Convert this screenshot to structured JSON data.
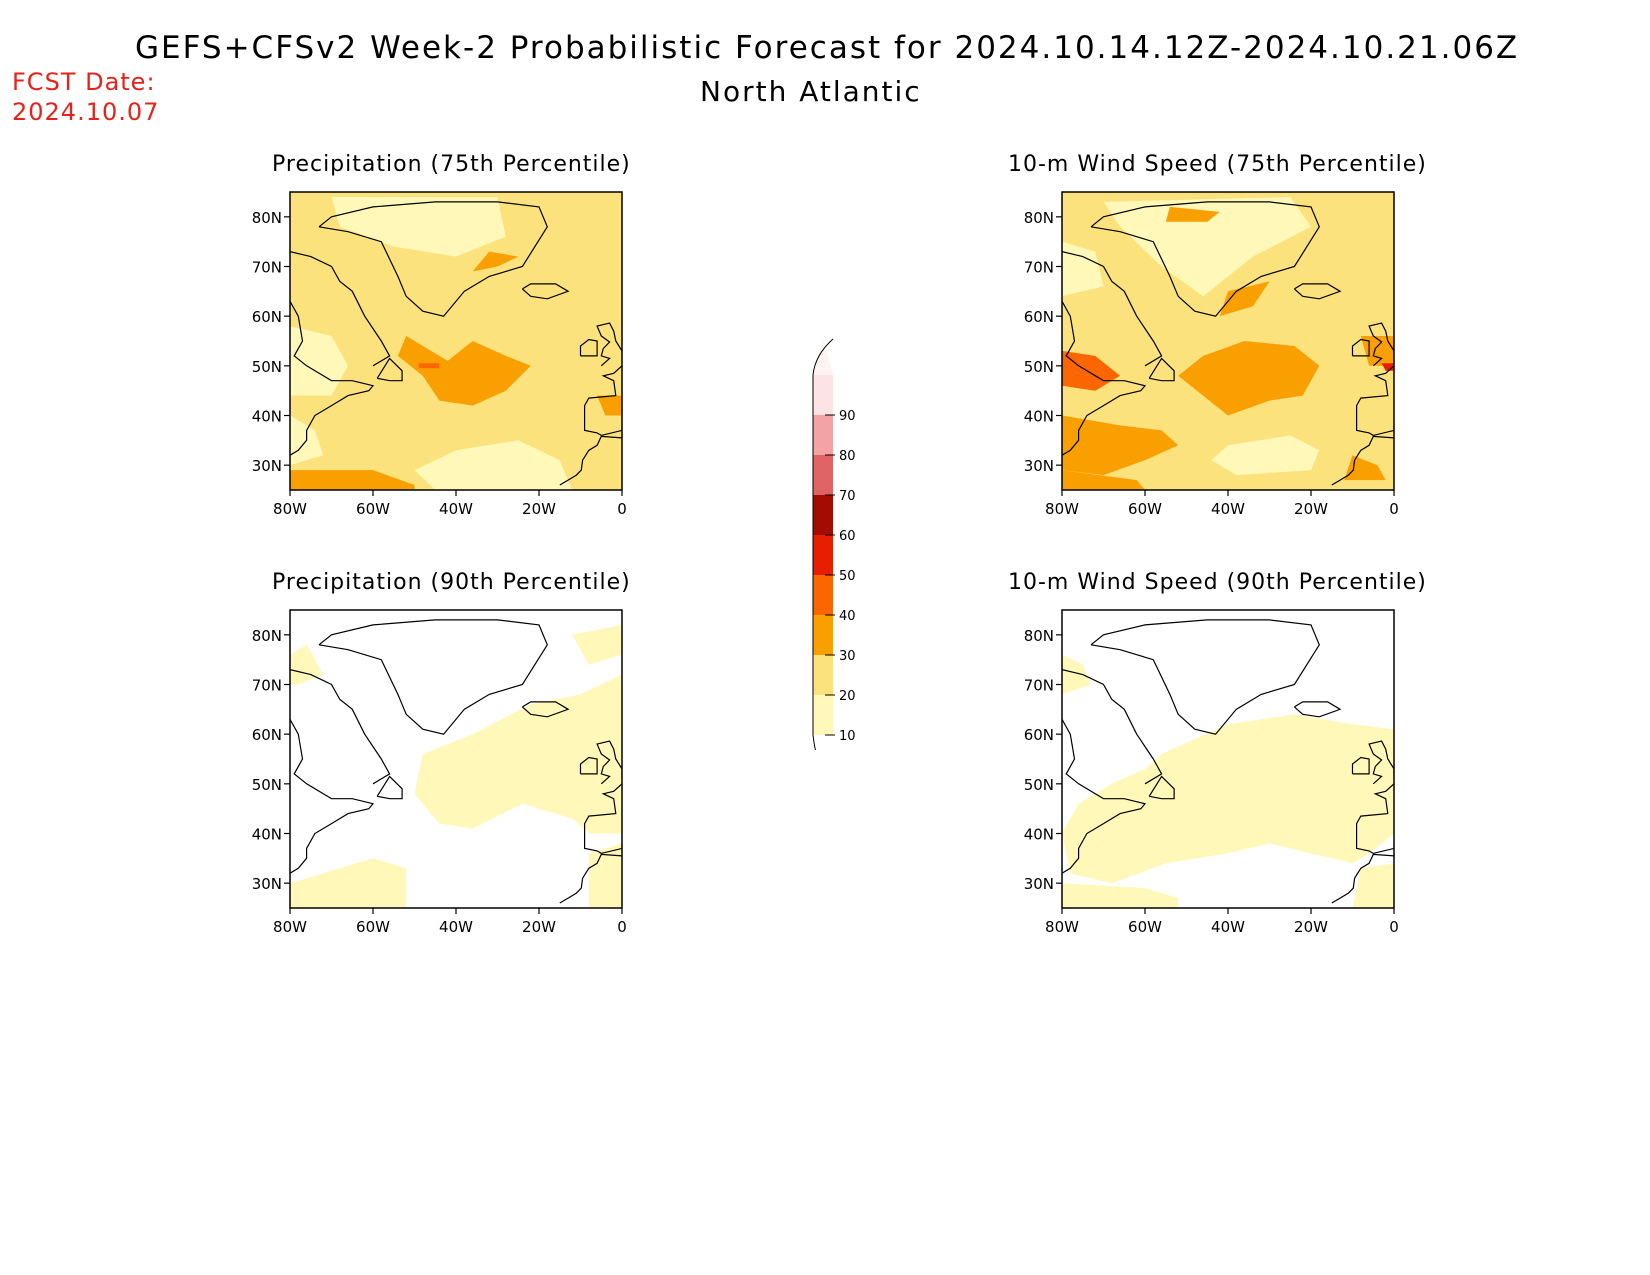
{
  "header": {
    "title": "GEFS+CFSv2 Week-2 Probabilistic Forecast for 2024.10.14.12Z-2024.10.21.06Z",
    "subtitle": "North Atlantic",
    "fcst_label": "FCST Date:",
    "fcst_date": "2024.10.07"
  },
  "panels": [
    {
      "title": "Precipitation (75th Percentile)"
    },
    {
      "title": "10-m Wind Speed (75th Percentile)"
    },
    {
      "title": "Precipitation (90th Percentile)"
    },
    {
      "title": "10-m Wind Speed (90th Percentile)"
    }
  ],
  "axes": {
    "lat_ticks": [
      "80N",
      "70N",
      "60N",
      "50N",
      "40N",
      "30N"
    ],
    "lon_ticks": [
      "80W",
      "60W",
      "40W",
      "20W",
      "0"
    ]
  },
  "colorbar": {
    "levels": [
      "10",
      "20",
      "30",
      "40",
      "50",
      "60",
      "70",
      "80",
      "90"
    ],
    "colors": [
      "#fff8b8",
      "#fbe27c",
      "#f9a000",
      "#fb6600",
      "#e81e00",
      "#a50c00",
      "#e06466",
      "#f4a2a4",
      "#fde3e4"
    ]
  }
}
